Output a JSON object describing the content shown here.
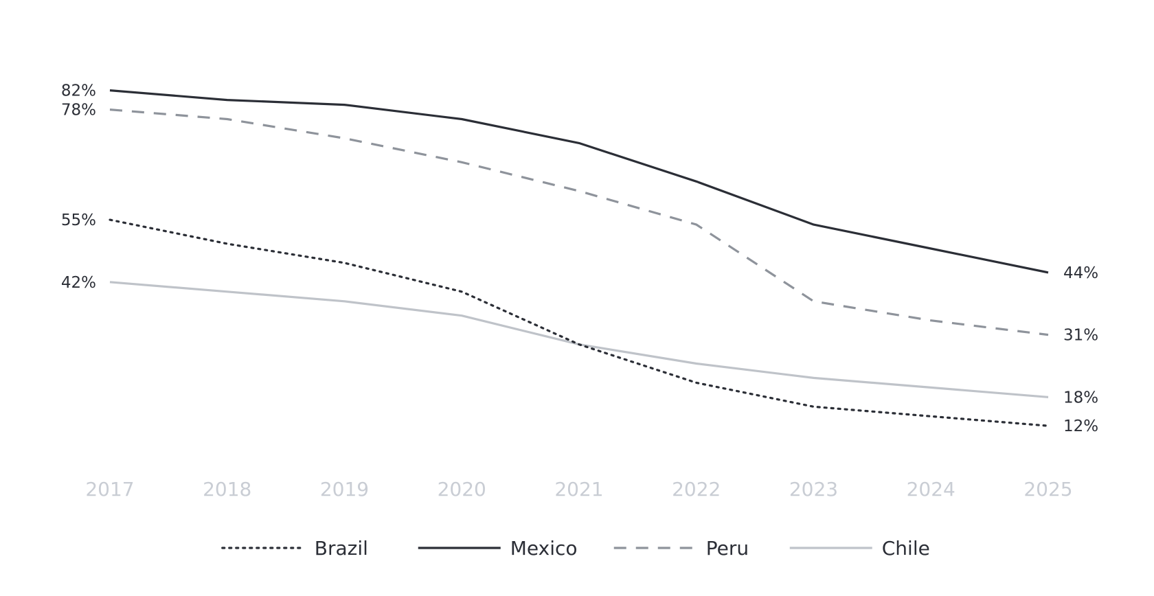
{
  "chart_data": {
    "type": "line",
    "title": "",
    "xlabel": "",
    "ylabel": "",
    "categories": [
      "2017",
      "2018",
      "2019",
      "2020",
      "2021",
      "2022",
      "2023",
      "2024",
      "2025"
    ],
    "ylim": [
      0,
      100
    ],
    "grid": false,
    "legend_position": "bottom-center",
    "series": [
      {
        "name": "Brazil",
        "color": "#2b2e36",
        "style": "dotted",
        "values": [
          55,
          50,
          46,
          40,
          29,
          21,
          16,
          14,
          12
        ],
        "start_label": "55%",
        "end_label": "12%"
      },
      {
        "name": "Mexico",
        "color": "#2b2e36",
        "style": "solid",
        "values": [
          82,
          80,
          79,
          76,
          71,
          63,
          54,
          49,
          44
        ],
        "start_label": "82%",
        "end_label": "44%"
      },
      {
        "name": "Peru",
        "color": "#8e939b",
        "style": "dashed",
        "values": [
          78,
          76,
          72,
          67,
          61,
          54,
          38,
          34,
          31
        ],
        "start_label": "78%",
        "end_label": "31%"
      },
      {
        "name": "Chile",
        "color": "#bfc3c9",
        "style": "solid",
        "values": [
          42,
          40,
          38,
          35,
          29,
          25,
          22,
          20,
          18
        ],
        "start_label": "42%",
        "end_label": "18%"
      }
    ]
  }
}
